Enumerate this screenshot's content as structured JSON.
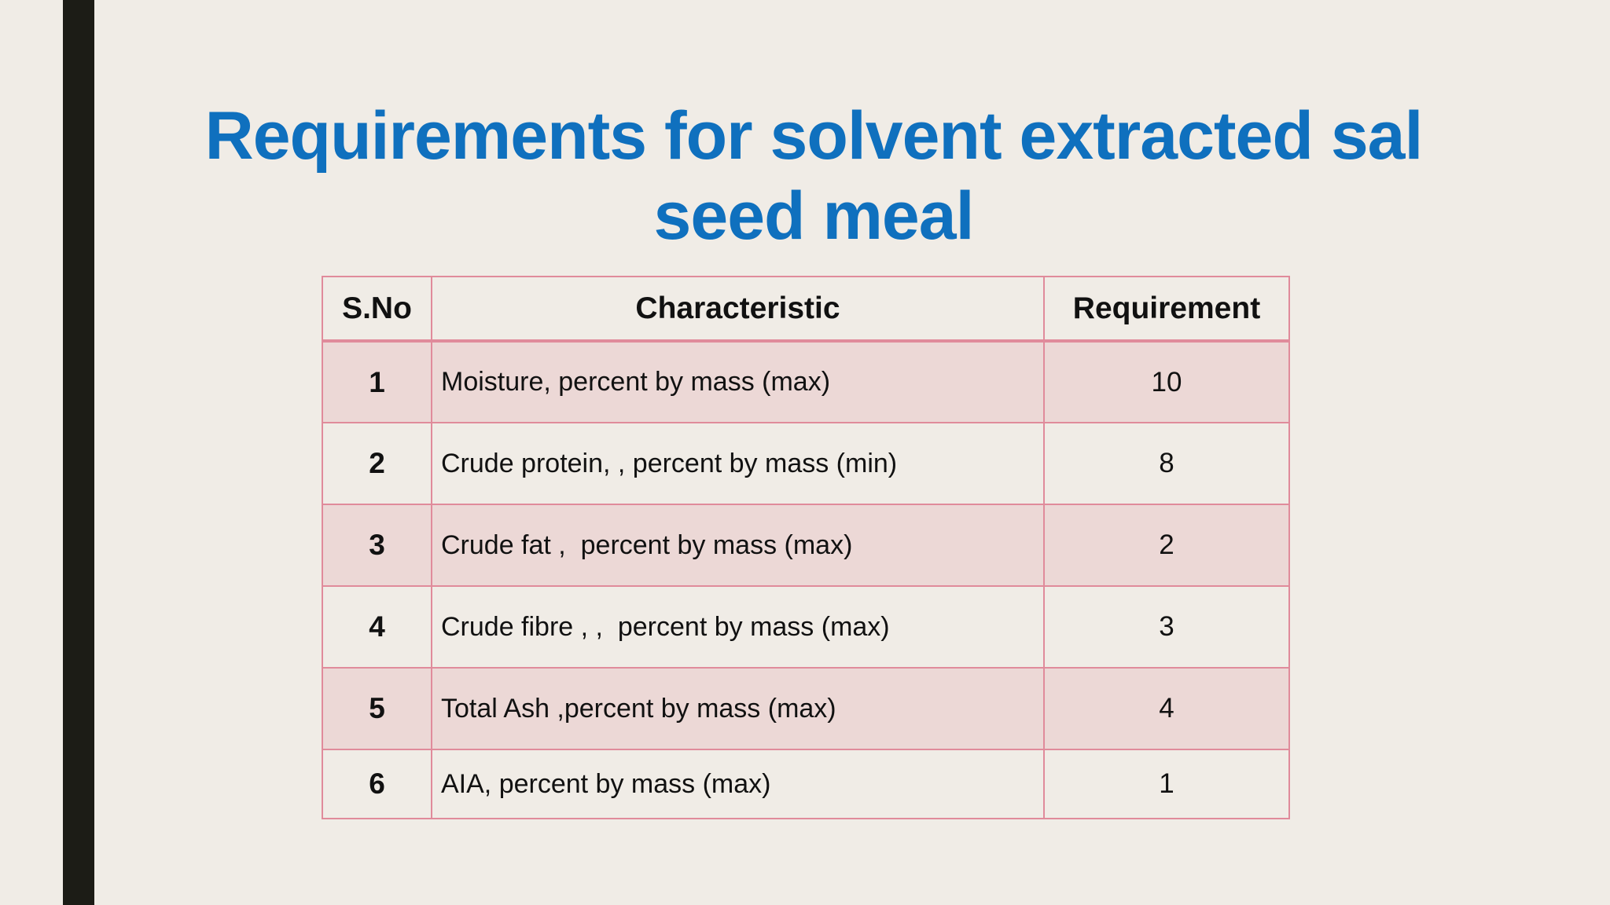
{
  "slide": {
    "title": "Requirements for solvent extracted sal seed meal",
    "accent_color": "#0f70be",
    "table_border_color": "#e08b9b",
    "band_color": "#ecd8d6"
  },
  "table": {
    "headers": [
      "S.No",
      "Characteristic",
      "Requirement"
    ],
    "rows": [
      {
        "sno": "1",
        "characteristic": "Moisture, percent by mass (max)",
        "requirement": "10"
      },
      {
        "sno": "2",
        "characteristic": "Crude protein, , percent by mass (min)",
        "requirement": "8"
      },
      {
        "sno": "3",
        "characteristic": "Crude fat ,  percent by mass (max)",
        "requirement": "2"
      },
      {
        "sno": "4",
        "characteristic": "Crude fibre , ,  percent by mass (max)",
        "requirement": "3"
      },
      {
        "sno": "5",
        "characteristic": "Total Ash ,percent by mass (max)",
        "requirement": "4"
      },
      {
        "sno": "6",
        "characteristic": "AIA, percent by mass (max)",
        "requirement": "1"
      }
    ]
  }
}
